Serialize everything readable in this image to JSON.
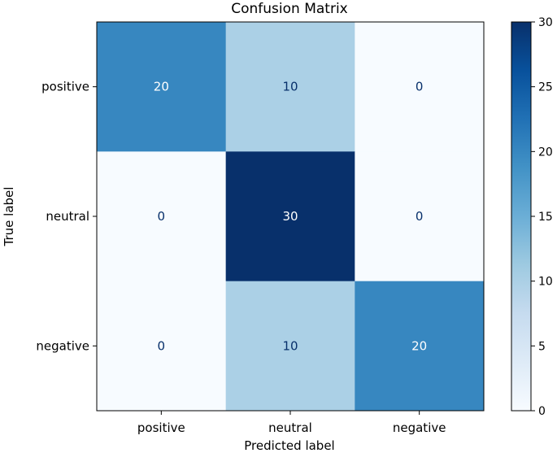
{
  "chart_data": {
    "type": "heatmap",
    "title": "Confusion Matrix",
    "xlabel": "Predicted label",
    "ylabel": "True label",
    "x_categories": [
      "positive",
      "neutral",
      "negative"
    ],
    "y_categories": [
      "positive",
      "neutral",
      "negative"
    ],
    "values": [
      [
        20,
        10,
        0
      ],
      [
        0,
        30,
        0
      ],
      [
        0,
        10,
        20
      ]
    ],
    "colorbar": {
      "min": 0,
      "max": 30,
      "ticks": [
        0,
        5,
        10,
        15,
        20,
        25,
        30
      ],
      "tick_labels": [
        "0",
        "5",
        "10",
        "15",
        "20",
        "25",
        "30"
      ]
    },
    "colormap": "Blues",
    "grid": false
  }
}
